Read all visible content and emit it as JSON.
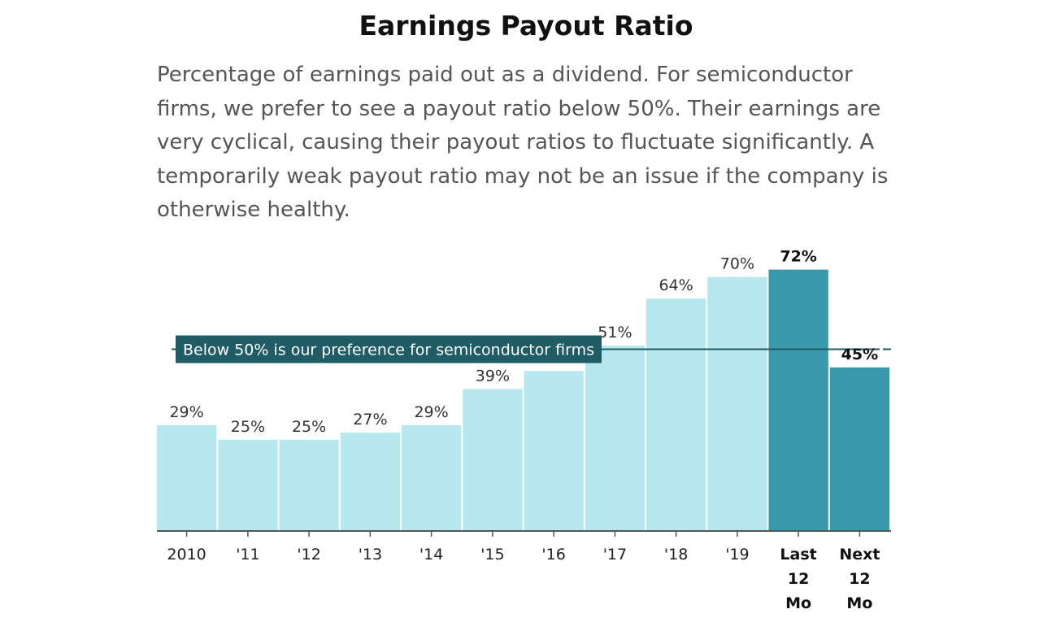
{
  "title": "Earnings Payout Ratio",
  "subtitle": "Percentage of earnings paid out as a dividend. For semiconductor firms, we prefer to see a payout ratio below 50%. Their earnings are very cyclical, causing their payout ratios to fluctuate significantly. A temporarily weak payout ratio may not be an issue if the company is otherwise healthy.",
  "chart_data": {
    "type": "bar",
    "title": "Earnings Payout Ratio",
    "xlabel": "",
    "ylabel": "",
    "ylim": [
      0,
      80
    ],
    "grid": false,
    "legend": "none",
    "categories": [
      [
        "2010"
      ],
      [
        "'11"
      ],
      [
        "'12"
      ],
      [
        "'13"
      ],
      [
        "'14"
      ],
      [
        "'15"
      ],
      [
        "'16"
      ],
      [
        "'17"
      ],
      [
        "'18"
      ],
      [
        "'19"
      ],
      [
        "Last",
        "12",
        "Mo"
      ],
      [
        "Next",
        "12",
        "Mo"
      ]
    ],
    "values": [
      29,
      25,
      25,
      27,
      29,
      39,
      44,
      51,
      64,
      70,
      72,
      45
    ],
    "labels": [
      "29%",
      "25%",
      "25%",
      "27%",
      "29%",
      "39%",
      "",
      "51%",
      "64%",
      "70%",
      "72%",
      "45%"
    ],
    "highlighted": [
      false,
      false,
      false,
      false,
      false,
      false,
      false,
      false,
      false,
      false,
      true,
      true
    ],
    "threshold": {
      "value": 50,
      "label": "Below 50% is our preference for semiconductor firms"
    },
    "colors": {
      "bar": "#b8e8ef",
      "highlight": "#3899ab",
      "threshold_line": "#1f5c66",
      "threshold_label_bg": "#1f5c66",
      "axis": "#555555"
    }
  }
}
